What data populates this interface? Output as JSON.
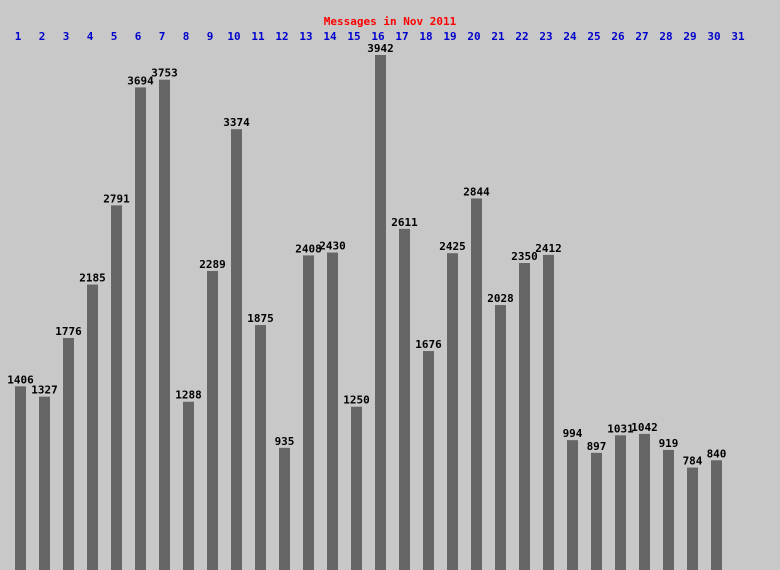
{
  "chart_data": {
    "type": "bar",
    "title": "Messages in Nov 2011",
    "categories": [
      "1",
      "2",
      "3",
      "4",
      "5",
      "6",
      "7",
      "8",
      "9",
      "10",
      "11",
      "12",
      "13",
      "14",
      "15",
      "16",
      "17",
      "18",
      "19",
      "20",
      "21",
      "22",
      "23",
      "24",
      "25",
      "26",
      "27",
      "28",
      "29",
      "30",
      "31"
    ],
    "values": [
      1406,
      1327,
      1776,
      2185,
      2791,
      3694,
      3753,
      1288,
      2289,
      3374,
      1875,
      935,
      2408,
      2430,
      1250,
      3942,
      2611,
      1676,
      2425,
      2844,
      2028,
      2350,
      2412,
      994,
      897,
      1031,
      1042,
      919,
      784,
      840,
      null
    ],
    "color": "#666666",
    "title_color": "#ff0000",
    "category_color": "#0000cc",
    "background": "#c8c8c8"
  }
}
